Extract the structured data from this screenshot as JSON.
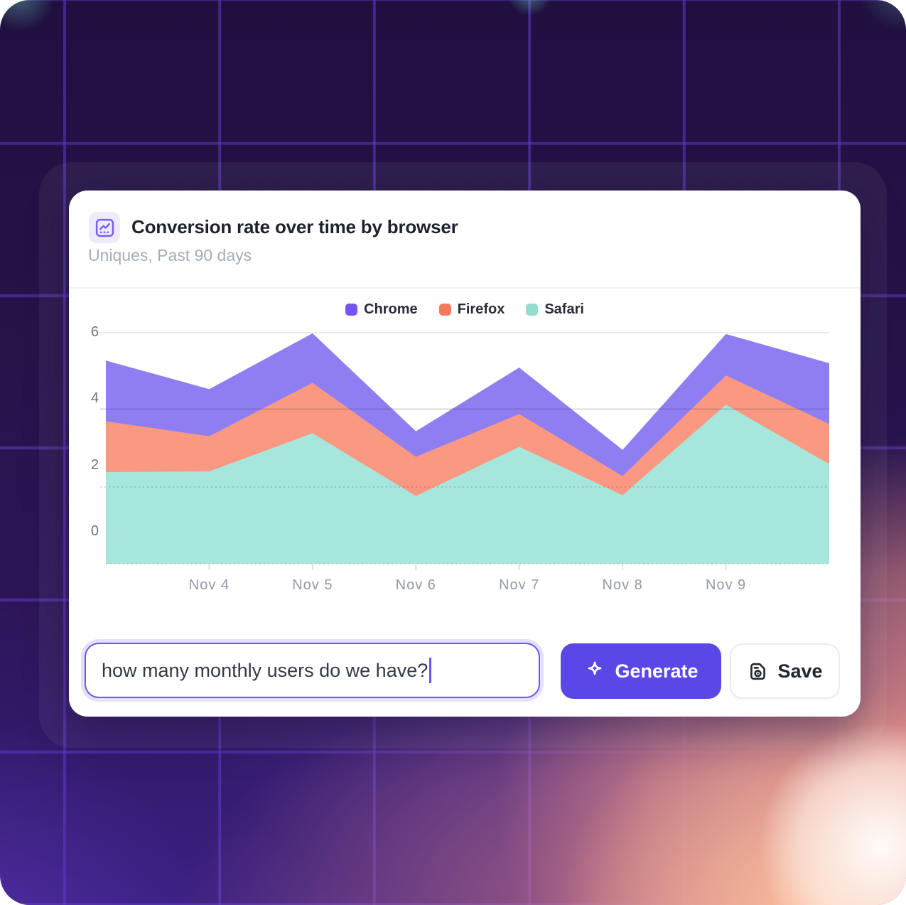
{
  "header": {
    "title": "Conversion rate over time by browser",
    "subtitle": "Uniques, Past 90 days",
    "icon": "line-chart-icon"
  },
  "prompt": {
    "value": "how many monthly users do we have?",
    "cursor_visible": true
  },
  "actions": {
    "generate_label": "Generate",
    "save_label": "Save",
    "generate_icon": "sparkle-icon",
    "save_icon": "floppy-disk-icon"
  },
  "colors": {
    "accent_purple": "#5A47E6",
    "input_border": "#6C55F2",
    "card_bg": "#FFFFFF",
    "bg_dark_purple": "#251349",
    "bg_grid_line": "#623CCE",
    "glow_pink": "#E69085",
    "glow_orange": "#FFC4A0"
  },
  "chart_data": {
    "type": "area",
    "stacked": true,
    "title": "Conversion rate over time by browser",
    "subtitle": "Uniques, Past 90 days",
    "legend_position": "top-center",
    "grid": "partial",
    "ylim": [
      -0.97,
      6.27
    ],
    "y_ticks": [
      6,
      4,
      2,
      0
    ],
    "x": [
      0,
      1,
      2,
      3,
      4,
      5,
      6,
      7
    ],
    "x_tick_positions": [
      1,
      2,
      3,
      4,
      5,
      6
    ],
    "x_tick_labels": [
      "Nov 4",
      "Nov 5",
      "Nov 6",
      "Nov 7",
      "Nov 8",
      "Nov 9"
    ],
    "gridlines": {
      "solid": [
        6
      ],
      "faint_solid": [
        3.7
      ],
      "dotted": [
        1.35
      ]
    },
    "series": [
      {
        "name": "Chrome",
        "legend_color": "#7453F8",
        "fill": "#8F7EF2",
        "values": [
          1.83,
          1.42,
          1.49,
          0.77,
          1.4,
          0.79,
          1.25,
          1.83
        ]
      },
      {
        "name": "Firefox",
        "legend_color": "#F8785F",
        "fill": "#FA9881",
        "values": [
          1.53,
          1.06,
          1.52,
          1.18,
          0.99,
          0.58,
          0.88,
          1.21
        ]
      },
      {
        "name": "Safari",
        "legend_color": "#93DCCF",
        "fill": "#A5E7DC",
        "values": [
          1.8,
          1.82,
          2.97,
          1.08,
          2.56,
          1.1,
          3.83,
          2.04
        ]
      }
    ],
    "stack_order_bottom_to_top": [
      "Safari",
      "Firefox",
      "Chrome"
    ]
  }
}
